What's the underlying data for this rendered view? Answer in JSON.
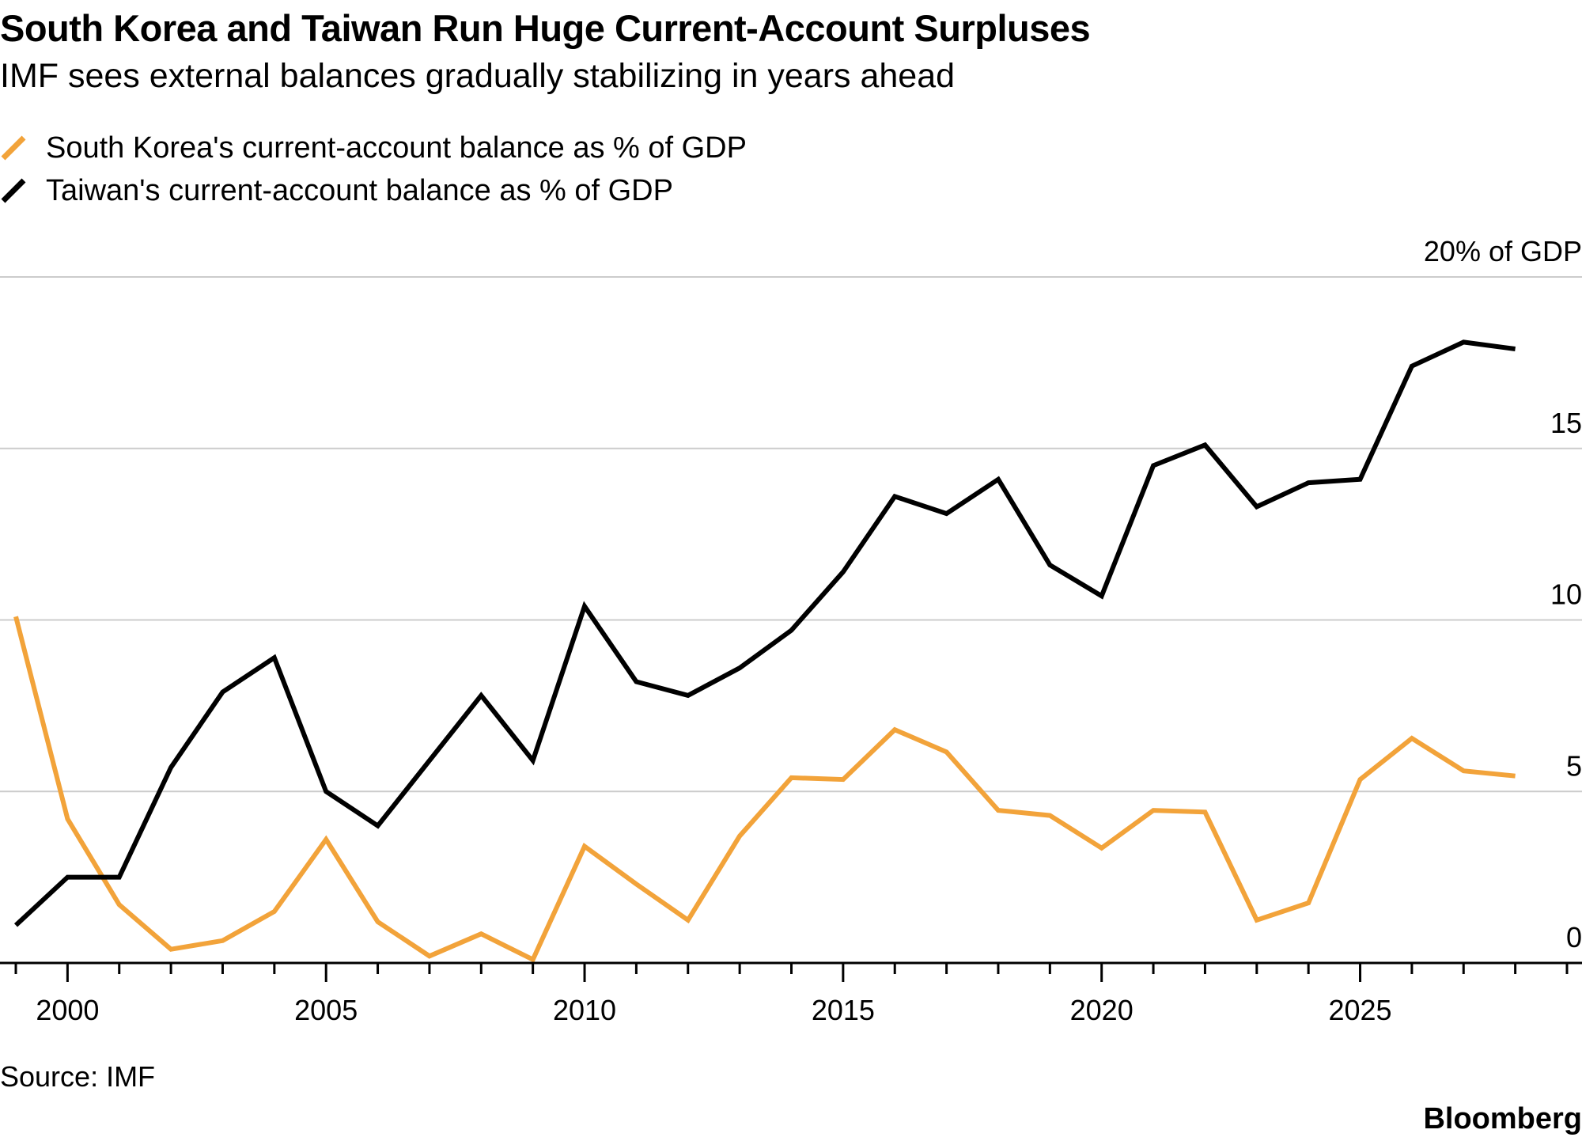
{
  "title": "South Korea and Taiwan Run Huge Current-Account Surpluses",
  "subtitle": "IMF sees external balances gradually stabilizing in years ahead",
  "source": "Source: IMF",
  "logo": "Bloomberg",
  "chart_data": {
    "type": "line",
    "x": [
      1999,
      2000,
      2001,
      2002,
      2003,
      2004,
      2005,
      2006,
      2007,
      2008,
      2009,
      2010,
      2011,
      2012,
      2013,
      2014,
      2015,
      2016,
      2017,
      2018,
      2019,
      2020,
      2021,
      2022,
      2023,
      2024,
      2025,
      2026,
      2027,
      2028
    ],
    "series": [
      {
        "name": "South Korea's current-account balance as % of GDP",
        "color": "#f2a33a",
        "values": [
          10.1,
          4.2,
          1.7,
          0.4,
          0.65,
          1.5,
          3.6,
          1.2,
          0.2,
          0.85,
          0.1,
          3.4,
          2.3,
          1.25,
          3.7,
          5.4,
          5.35,
          6.8,
          6.15,
          4.45,
          4.3,
          3.35,
          4.45,
          4.4,
          1.25,
          1.75,
          5.35,
          6.55,
          5.6,
          5.45
        ]
      },
      {
        "name": "Taiwan's current-account balance as % of GDP",
        "color": "#000000",
        "values": [
          1.1,
          2.5,
          2.5,
          5.7,
          7.9,
          8.9,
          5.0,
          4.0,
          5.9,
          7.8,
          5.9,
          10.4,
          8.2,
          7.8,
          8.6,
          9.7,
          11.4,
          13.6,
          13.1,
          14.1,
          11.6,
          10.7,
          14.5,
          15.1,
          13.3,
          14.0,
          14.1,
          17.4,
          18.1,
          17.9
        ]
      }
    ],
    "y_unit_label": "20% of GDP",
    "y_ticks": [
      {
        "value": 0,
        "label": "0"
      },
      {
        "value": 5,
        "label": "5"
      },
      {
        "value": 10,
        "label": "10"
      },
      {
        "value": 15,
        "label": "15"
      },
      {
        "value": 20,
        "label": "20% of GDP"
      }
    ],
    "x_tick_labels": [
      "2000",
      "2005",
      "2010",
      "2015",
      "2020",
      "2025"
    ],
    "xlim": [
      1999,
      2029
    ],
    "ylim": [
      0,
      20
    ],
    "grid": true,
    "legend_position": "top-left"
  }
}
